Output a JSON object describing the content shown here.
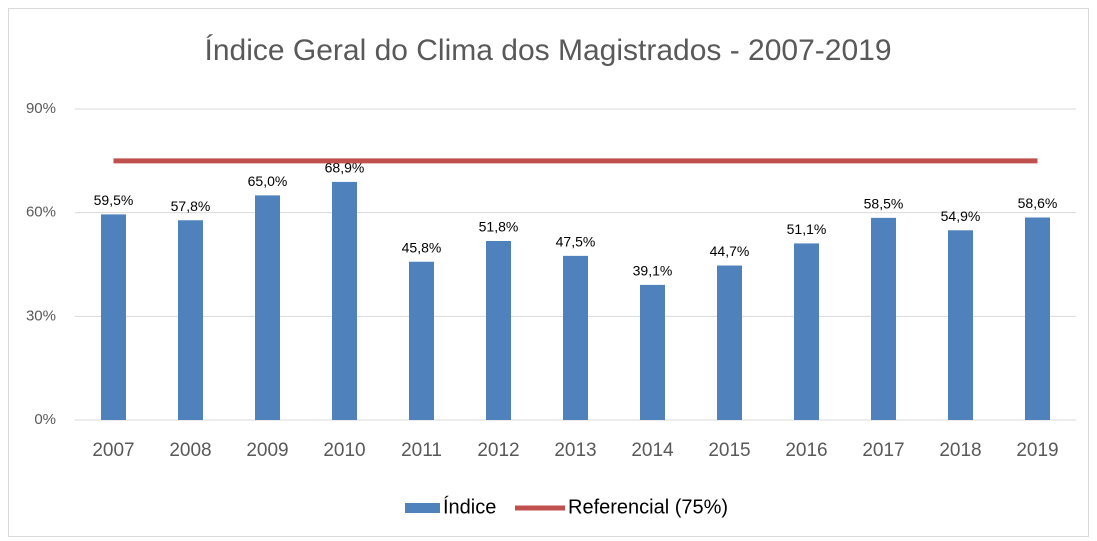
{
  "chart_data": {
    "type": "bar",
    "title": "Índice Geral do Clima dos Magistrados - 2007-2019",
    "categories": [
      "2007",
      "2008",
      "2009",
      "2010",
      "2011",
      "2012",
      "2013",
      "2014",
      "2015",
      "2016",
      "2017",
      "2018",
      "2019"
    ],
    "series": [
      {
        "name": "Índice",
        "type": "bar",
        "color": "#4f81bd",
        "values": [
          59.5,
          57.8,
          65.0,
          68.9,
          45.8,
          51.8,
          47.5,
          39.1,
          44.7,
          51.1,
          58.5,
          54.9,
          58.6
        ],
        "value_labels": [
          "59,5%",
          "57,8%",
          "65,0%",
          "68,9%",
          "45,8%",
          "51,8%",
          "47,5%",
          "39,1%",
          "44,7%",
          "51,1%",
          "58,5%",
          "54,9%",
          "58,6%"
        ]
      },
      {
        "name": "Referencial (75%)",
        "type": "line",
        "color": "#c0504d",
        "values": [
          75,
          75,
          75,
          75,
          75,
          75,
          75,
          75,
          75,
          75,
          75,
          75,
          75
        ]
      }
    ],
    "ylim": [
      0,
      90
    ],
    "yticks": [
      {
        "value": 0,
        "label": "0%"
      },
      {
        "value": 30,
        "label": "30%"
      },
      {
        "value": 60,
        "label": "60%"
      },
      {
        "value": 90,
        "label": "90%"
      }
    ],
    "grid": true,
    "legend": "bottom"
  }
}
